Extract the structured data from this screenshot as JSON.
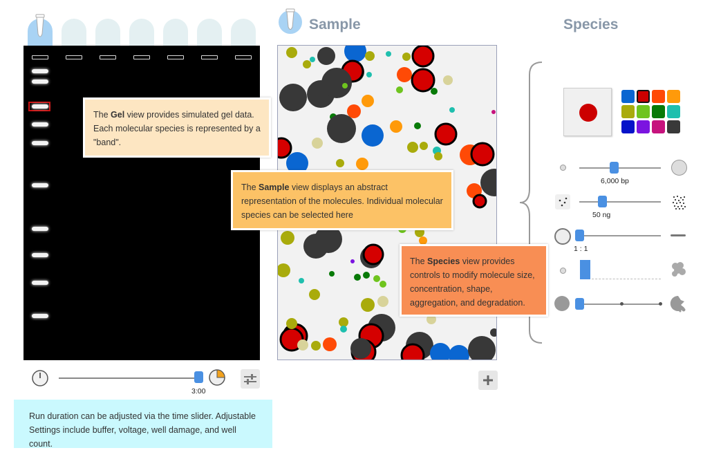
{
  "sample": {
    "title": "Sample"
  },
  "species": {
    "title": "Species",
    "selected_color": "#cc0000",
    "palette": [
      "#0a66d1",
      "#cc0000",
      "#ff4a06",
      "#ff9a0a",
      "#a9ab0c",
      "#6fc41e",
      "#087a08",
      "#1fbfae",
      "#0613c9",
      "#7b14e0",
      "#c6137d",
      "#393939"
    ],
    "size_value": "6,000 bp",
    "concentration_value": "50 ng",
    "shape_value": "1 : 1"
  },
  "gel": {
    "time_value": "3:00",
    "accent": "#4a90e2"
  },
  "callouts": {
    "gel_bold": "Gel",
    "gel_pre": "The ",
    "gel_post": " view provides simulated gel data. Each molecular species is represented by a \"band\".",
    "sample_bold": "Sample",
    "sample_pre": "The ",
    "sample_post": " view displays an abstract representation of the molecules. Individual molecular species can be selected here",
    "species_bold": "Species",
    "species_pre": "The ",
    "species_post": " view provides controls to modify molecule size, concentration, shape, aggregation, and degradation.",
    "run_text": "Run duration can be adjusted via the time slider. Adjustable Settings include buffer, voltage, well damage, and well count."
  },
  "icons": [
    "tube-icon",
    "timer-icon",
    "pie-timer-icon",
    "settings-sliders-icon",
    "plus-icon",
    "small-circle-icon",
    "large-circle-icon",
    "sparse-dots-icon",
    "dense-dots-icon",
    "ring-icon",
    "line-icon",
    "aggregate-icon",
    "degraded-icon"
  ]
}
